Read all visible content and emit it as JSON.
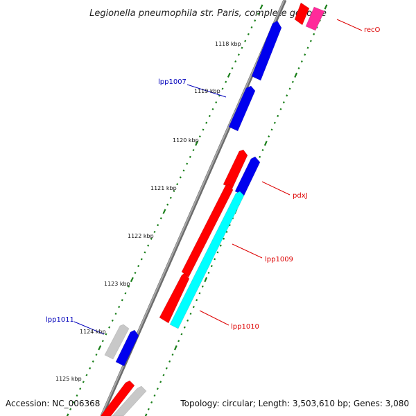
{
  "title": "Legionella pneumophila str. Paris, complete genome",
  "accession": "Accession: NC_006368",
  "topology": "Topology: circular; Length: 3,503,610 bp; Genes: 3,080",
  "colors": {
    "backbone": "#909090",
    "tick": "#1a7f1a",
    "red_gene": "#ff0000",
    "blue_gene": "#0000ee",
    "cyan_gene": "#00ffff",
    "pink_gene": "#ff2a9a",
    "gray_gene": "#c8c8c8",
    "label_red": "#dd0000",
    "label_blue": "#0000bb"
  },
  "kbp_labels": [
    "1118 kbp",
    "1119 kbp",
    "1120 kbp",
    "1121 kbp",
    "1122 kbp",
    "1123 kbp",
    "1124 kbp",
    "1125 kbp"
  ],
  "gene_labels": [
    {
      "text": "recO",
      "color": "red"
    },
    {
      "text": "lpp1007",
      "color": "blue"
    },
    {
      "text": "pdxJ",
      "color": "red"
    },
    {
      "text": "lpp1009",
      "color": "red"
    },
    {
      "text": "lpp1010",
      "color": "red"
    },
    {
      "text": "lpp1011",
      "color": "blue"
    }
  ]
}
